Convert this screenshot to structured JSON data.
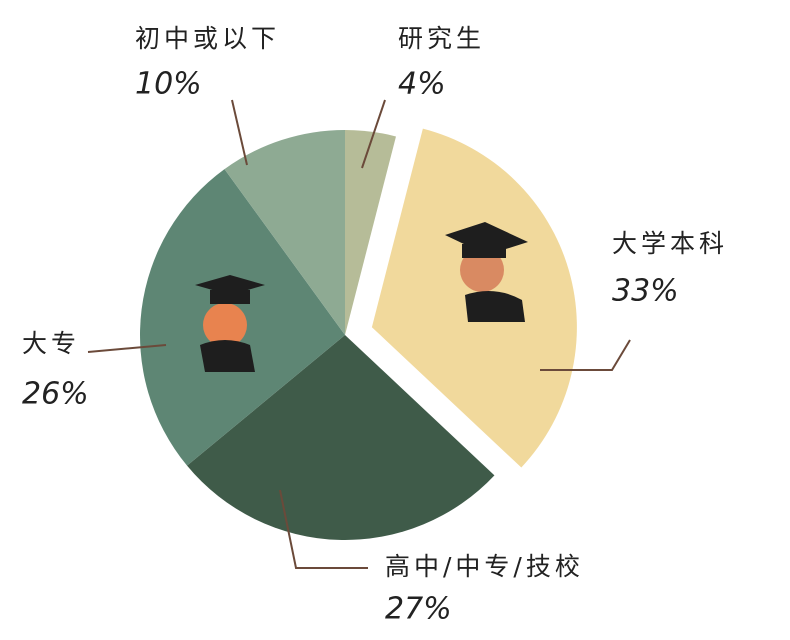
{
  "chart_data": {
    "type": "pie",
    "categories": [
      "研究生",
      "大学本科",
      "高中/中专/技校",
      "大专",
      "初中或以下"
    ],
    "values": [
      4,
      33,
      27,
      26,
      10
    ],
    "value_labels": [
      "4%",
      "33%",
      "27%",
      "26%",
      "10%"
    ],
    "colors": [
      "#b6bc98",
      "#f1d99c",
      "#3f5b49",
      "#5e8674",
      "#8eaa93"
    ],
    "exploded": [
      false,
      true,
      false,
      false,
      false
    ]
  }
}
